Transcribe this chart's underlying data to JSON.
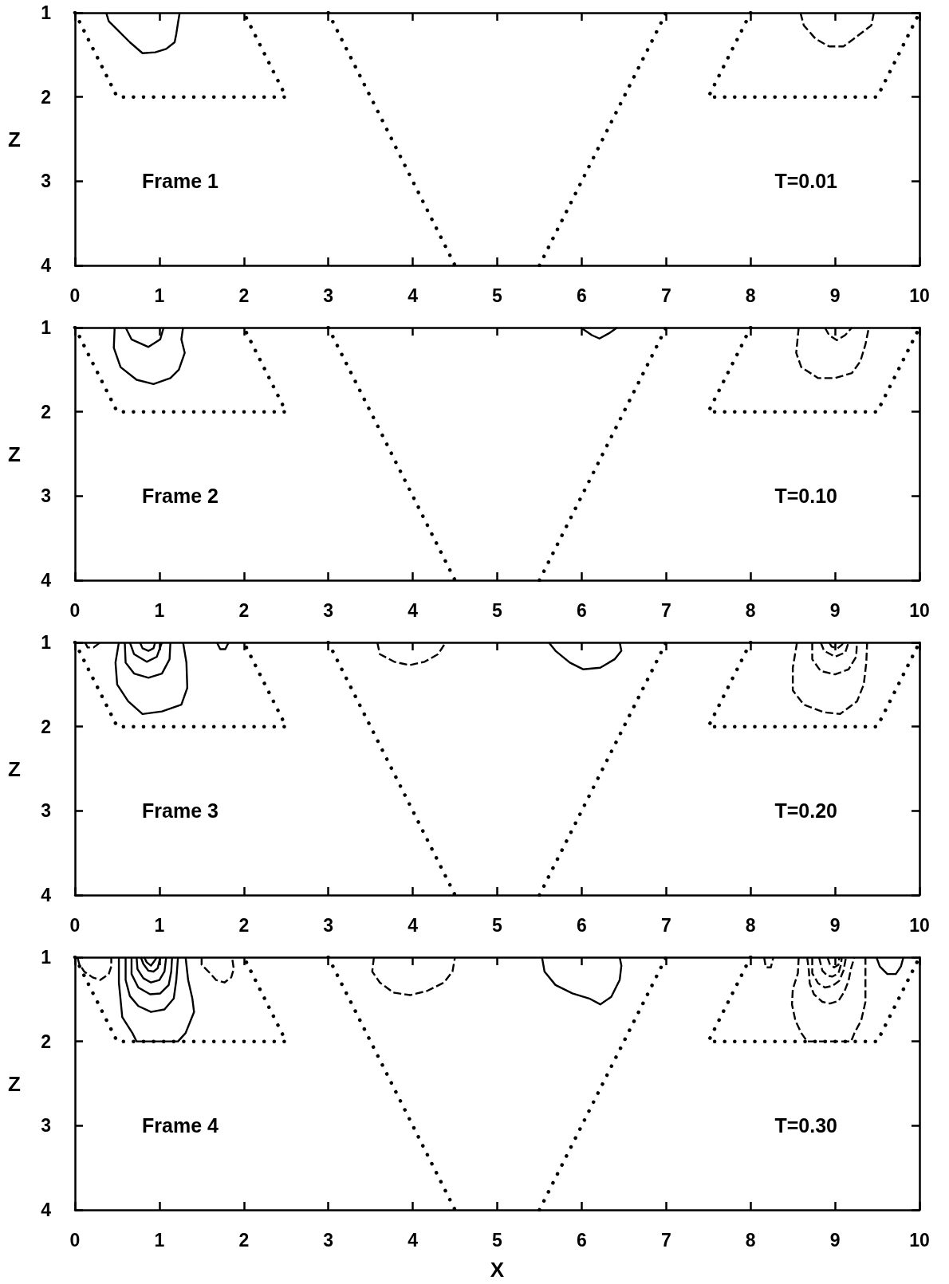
{
  "chart_data": [
    {
      "type": "line",
      "ylabel": "Z",
      "annotations": [
        "Frame 1",
        "T=0.01"
      ],
      "xlim": [
        0,
        10
      ],
      "xticks": [
        0,
        1,
        2,
        3,
        4,
        5,
        6,
        7,
        8,
        9,
        10
      ],
      "ylim": [
        4,
        1
      ],
      "yticks": [
        1,
        2,
        3,
        4
      ],
      "marker": "none",
      "series": [
        {
          "color": "#000000",
          "line_style": "dotted",
          "x": [
            0,
            0.5,
            2.5,
            2
          ],
          "values": [
            1,
            2,
            2,
            1
          ]
        },
        {
          "color": "#000000",
          "line_style": "dotted",
          "x": [
            3,
            4.5
          ],
          "values": [
            1,
            4
          ]
        },
        {
          "color": "#000000",
          "line_style": "dotted",
          "x": [
            5.5,
            7
          ],
          "values": [
            4,
            1
          ]
        },
        {
          "color": "#000000",
          "line_style": "dotted",
          "x": [
            8,
            7.5,
            9.5,
            10
          ],
          "values": [
            1,
            2,
            2,
            1
          ]
        },
        {
          "color": "#000000",
          "line_style": "solid",
          "x": [
            0.37,
            0.4,
            0.5,
            0.65,
            0.8,
            0.95,
            1.08,
            1.18,
            1.2,
            1.22,
            1.24
          ],
          "values": [
            1,
            1.1,
            1.2,
            1.35,
            1.48,
            1.47,
            1.43,
            1.35,
            1.25,
            1.12,
            1
          ]
        },
        {
          "color": "#000000",
          "line_style": "dashed",
          "x": [
            8.59,
            8.63,
            8.77,
            8.93,
            9.1,
            9.26,
            9.43,
            9.46
          ],
          "values": [
            1,
            1.15,
            1.31,
            1.4,
            1.4,
            1.28,
            1.15,
            1
          ]
        }
      ]
    },
    {
      "type": "line",
      "ylabel": "Z",
      "annotations": [
        "Frame 2",
        "T=0.10"
      ],
      "xlim": [
        0,
        10
      ],
      "xticks": [
        0,
        1,
        2,
        3,
        4,
        5,
        6,
        7,
        8,
        9,
        10
      ],
      "ylim": [
        4,
        1
      ],
      "yticks": [
        1,
        2,
        3,
        4
      ],
      "marker": "none",
      "series": [
        {
          "color": "#000000",
          "line_style": "dotted",
          "x": [
            0,
            0.5,
            2.5,
            2
          ],
          "values": [
            1,
            2,
            2,
            1
          ]
        },
        {
          "color": "#000000",
          "line_style": "dotted",
          "x": [
            3,
            4.5
          ],
          "values": [
            1,
            4
          ]
        },
        {
          "color": "#000000",
          "line_style": "dotted",
          "x": [
            5.5,
            7
          ],
          "values": [
            4,
            1
          ]
        },
        {
          "color": "#000000",
          "line_style": "dotted",
          "x": [
            8,
            7.5,
            9.5,
            10
          ],
          "values": [
            1,
            2,
            2,
            1
          ]
        },
        {
          "color": "#000000",
          "line_style": "solid",
          "x": [
            0.47,
            0.46,
            0.54,
            0.73,
            0.93,
            1.13,
            1.23,
            1.3,
            1.26,
            1.28
          ],
          "values": [
            1,
            1.24,
            1.47,
            1.62,
            1.67,
            1.6,
            1.5,
            1.3,
            1.14,
            1
          ]
        },
        {
          "color": "#000000",
          "line_style": "solid",
          "x": [
            0.6,
            0.67,
            0.87,
            1.01,
            1.05
          ],
          "values": [
            1,
            1.14,
            1.23,
            1.14,
            1
          ]
        },
        {
          "color": "#000000",
          "line_style": "solid",
          "x": [
            5.99,
            6.12,
            6.21,
            6.32,
            6.42
          ],
          "values": [
            1,
            1.09,
            1.13,
            1.07,
            1
          ]
        },
        {
          "color": "#000000",
          "line_style": "dashed",
          "x": [
            8.57,
            8.54,
            8.6,
            8.8,
            9,
            9.2,
            9.3,
            9.36,
            9.4
          ],
          "values": [
            1,
            1.3,
            1.47,
            1.6,
            1.6,
            1.54,
            1.4,
            1.2,
            1
          ]
        },
        {
          "color": "#000000",
          "line_style": "dashed",
          "x": [
            8.88,
            8.93,
            9.02,
            9.12,
            9.2
          ],
          "values": [
            1,
            1.09,
            1.15,
            1.09,
            1
          ]
        }
      ]
    },
    {
      "type": "line",
      "ylabel": "Z",
      "annotations": [
        "Frame 3",
        "T=0.20"
      ],
      "xlim": [
        0,
        10
      ],
      "xticks": [
        0,
        1,
        2,
        3,
        4,
        5,
        6,
        7,
        8,
        9,
        10
      ],
      "ylim": [
        4,
        1
      ],
      "yticks": [
        1,
        2,
        3,
        4
      ],
      "marker": "none",
      "series": [
        {
          "color": "#000000",
          "line_style": "dotted",
          "x": [
            0,
            0.5,
            2.5,
            2
          ],
          "values": [
            1,
            2,
            2,
            1
          ]
        },
        {
          "color": "#000000",
          "line_style": "dotted",
          "x": [
            3,
            4.5
          ],
          "values": [
            1,
            4
          ]
        },
        {
          "color": "#000000",
          "line_style": "dotted",
          "x": [
            5.5,
            7
          ],
          "values": [
            4,
            1
          ]
        },
        {
          "color": "#000000",
          "line_style": "dotted",
          "x": [
            8,
            7.5,
            9.5,
            10
          ],
          "values": [
            1,
            2,
            2,
            1
          ]
        },
        {
          "color": "#000000",
          "line_style": "solid",
          "x": [
            0.52,
            0.48,
            0.5,
            0.63,
            0.8,
            1.03,
            1.26,
            1.33,
            1.32,
            1.28
          ],
          "values": [
            1,
            1.24,
            1.5,
            1.7,
            1.85,
            1.82,
            1.74,
            1.54,
            1.24,
            1
          ]
        },
        {
          "color": "#000000",
          "line_style": "solid",
          "x": [
            0.59,
            0.6,
            0.7,
            0.87,
            1.03,
            1.12,
            1.13
          ],
          "values": [
            1,
            1.24,
            1.37,
            1.42,
            1.37,
            1.2,
            1
          ]
        },
        {
          "color": "#000000",
          "line_style": "solid",
          "x": [
            0.65,
            0.7,
            0.85,
            0.97,
            1.03
          ],
          "values": [
            1,
            1.14,
            1.23,
            1.17,
            1
          ]
        },
        {
          "color": "#000000",
          "line_style": "solid",
          "x": [
            0.77,
            0.8,
            0.87,
            0.93,
            0.95
          ],
          "values": [
            1,
            1.07,
            1.1,
            1.07,
            1
          ]
        },
        {
          "color": "#000000",
          "line_style": "dashed",
          "x": [
            0.12,
            0.15,
            0.22,
            0.3
          ],
          "values": [
            1,
            1.06,
            1.06,
            1
          ]
        },
        {
          "color": "#000000",
          "line_style": "solid",
          "x": [
            1.68,
            1.72,
            1.78,
            1.82
          ],
          "values": [
            1,
            1.08,
            1.08,
            1
          ]
        },
        {
          "color": "#000000",
          "line_style": "dashed",
          "x": [
            3.58,
            3.61,
            3.78,
            3.96,
            4.14,
            4.3,
            4.39
          ],
          "values": [
            1,
            1.14,
            1.23,
            1.27,
            1.23,
            1.14,
            1
          ]
        },
        {
          "color": "#000000",
          "line_style": "solid",
          "x": [
            5.61,
            5.69,
            5.86,
            6.02,
            6.22,
            6.39,
            6.47,
            6.45
          ],
          "values": [
            1,
            1.1,
            1.24,
            1.32,
            1.3,
            1.2,
            1.1,
            1
          ]
        },
        {
          "color": "#000000",
          "line_style": "dashed",
          "x": [
            8.55,
            8.5,
            8.5,
            8.63,
            8.87,
            9.06,
            9.26,
            9.34,
            9.37,
            9.38
          ],
          "values": [
            1,
            1.3,
            1.57,
            1.74,
            1.83,
            1.85,
            1.7,
            1.5,
            1.24,
            1
          ]
        },
        {
          "color": "#000000",
          "line_style": "dashed",
          "x": [
            8.73,
            8.73,
            8.83,
            9,
            9.16,
            9.25,
            9.26
          ],
          "values": [
            1,
            1.2,
            1.34,
            1.38,
            1.32,
            1.17,
            1
          ]
        },
        {
          "color": "#000000",
          "line_style": "dashed",
          "x": [
            8.83,
            8.87,
            9,
            9.12,
            9.16
          ],
          "values": [
            1,
            1.1,
            1.17,
            1.12,
            1
          ]
        },
        {
          "color": "#000000",
          "line_style": "dashed",
          "x": [
            8.93,
            8.96,
            9.03,
            9.08,
            9.1
          ],
          "values": [
            1,
            1.05,
            1.07,
            1.03,
            1
          ]
        }
      ]
    },
    {
      "type": "line",
      "xlabel": "X",
      "ylabel": "Z",
      "annotations": [
        "Frame 4",
        "T=0.30"
      ],
      "xlim": [
        0,
        10
      ],
      "xticks": [
        0,
        1,
        2,
        3,
        4,
        5,
        6,
        7,
        8,
        9,
        10
      ],
      "ylim": [
        4,
        1
      ],
      "yticks": [
        1,
        2,
        3,
        4
      ],
      "marker": "none",
      "series": [
        {
          "color": "#000000",
          "line_style": "dotted",
          "x": [
            0,
            0.5,
            2.5,
            2
          ],
          "values": [
            1,
            2,
            2,
            1
          ]
        },
        {
          "color": "#000000",
          "line_style": "dotted",
          "x": [
            3,
            4.5
          ],
          "values": [
            1,
            4
          ]
        },
        {
          "color": "#000000",
          "line_style": "dotted",
          "x": [
            5.5,
            7
          ],
          "values": [
            4,
            1
          ]
        },
        {
          "color": "#000000",
          "line_style": "dotted",
          "x": [
            8,
            7.5,
            9.5,
            10
          ],
          "values": [
            1,
            2,
            2,
            1
          ]
        },
        {
          "color": "#000000",
          "line_style": "solid",
          "x": [
            0.52,
            0.52,
            0.56,
            0.68,
            0.73,
            1.22,
            1.31,
            1.41,
            1.39,
            1.34,
            1.31
          ],
          "values": [
            1,
            1.3,
            1.71,
            1.9,
            2,
            2,
            1.9,
            1.65,
            1.49,
            1.27,
            1
          ]
        },
        {
          "color": "#000000",
          "line_style": "solid",
          "x": [
            0.6,
            0.6,
            0.65,
            0.75,
            0.9,
            1.06,
            1.17,
            1.2,
            1.22
          ],
          "values": [
            1,
            1.27,
            1.46,
            1.58,
            1.65,
            1.62,
            1.49,
            1.27,
            1
          ]
        },
        {
          "color": "#000000",
          "line_style": "solid",
          "x": [
            0.67,
            0.67,
            0.75,
            0.89,
            1.01,
            1.11,
            1.14,
            1.15
          ],
          "values": [
            1,
            1.2,
            1.36,
            1.44,
            1.43,
            1.33,
            1.17,
            1
          ]
        },
        {
          "color": "#000000",
          "line_style": "solid",
          "x": [
            0.73,
            0.74,
            0.81,
            0.9,
            1,
            1.06,
            1.08
          ],
          "values": [
            1,
            1.14,
            1.25,
            1.3,
            1.27,
            1.17,
            1
          ]
        },
        {
          "color": "#000000",
          "line_style": "solid",
          "x": [
            0.78,
            0.81,
            0.87,
            0.93,
            0.98,
            1.01
          ],
          "values": [
            1,
            1.08,
            1.16,
            1.17,
            1.13,
            1
          ]
        },
        {
          "color": "#000000",
          "line_style": "solid",
          "x": [
            0.82,
            0.85,
            0.9,
            0.93,
            0.97
          ],
          "values": [
            1,
            1.06,
            1.1,
            1.06,
            1
          ]
        },
        {
          "color": "#000000",
          "line_style": "dashed",
          "x": [
            0.03,
            0.05,
            0.11,
            0.21,
            0.3,
            0.4,
            0.43,
            0.43
          ],
          "values": [
            1,
            1.08,
            1.17,
            1.24,
            1.27,
            1.2,
            1.11,
            1
          ]
        },
        {
          "color": "#000000",
          "line_style": "dashed",
          "x": [
            1.5,
            1.5,
            1.6,
            1.67,
            1.77,
            1.85,
            1.88,
            1.86
          ],
          "values": [
            1,
            1.09,
            1.19,
            1.27,
            1.3,
            1.24,
            1.14,
            1
          ]
        },
        {
          "color": "#000000",
          "line_style": "dashed",
          "x": [
            3.54,
            3.52,
            3.61,
            3.77,
            3.97,
            4.17,
            4.37,
            4.47,
            4.5
          ],
          "values": [
            1,
            1.17,
            1.3,
            1.42,
            1.45,
            1.4,
            1.3,
            1.17,
            1
          ]
        },
        {
          "color": "#000000",
          "line_style": "solid",
          "x": [
            5.53,
            5.56,
            5.69,
            5.89,
            6.09,
            6.22,
            6.35,
            6.45,
            6.47,
            6.45
          ],
          "values": [
            1,
            1.17,
            1.33,
            1.43,
            1.49,
            1.56,
            1.47,
            1.27,
            1.1,
            1
          ]
        },
        {
          "color": "#000000",
          "line_style": "dashed",
          "x": [
            8.57,
            8.56,
            8.5,
            8.49,
            8.53,
            8.6,
            8.67,
            9.19,
            9.23,
            9.31,
            9.36,
            9.36,
            9.36
          ],
          "values": [
            1,
            1.19,
            1.38,
            1.56,
            1.75,
            1.9,
            2,
            2,
            1.9,
            1.75,
            1.53,
            1.31,
            1
          ]
        },
        {
          "color": "#000000",
          "line_style": "dashed",
          "x": [
            8.67,
            8.69,
            8.7,
            8.75,
            8.85,
            8.94,
            9.04,
            9.11,
            9.16,
            9.19,
            9.23
          ],
          "values": [
            1,
            1.16,
            1.31,
            1.44,
            1.53,
            1.55,
            1.52,
            1.41,
            1.28,
            1.13,
            1
          ]
        },
        {
          "color": "#000000",
          "line_style": "dashed",
          "x": [
            8.73,
            8.73,
            8.8,
            8.88,
            8.97,
            9.05,
            9.1,
            9.13
          ],
          "values": [
            1,
            1.19,
            1.31,
            1.36,
            1.34,
            1.28,
            1.16,
            1
          ]
        },
        {
          "color": "#000000",
          "line_style": "dashed",
          "x": [
            8.81,
            8.85,
            8.91,
            8.97,
            9.04,
            9.07,
            9.08
          ],
          "values": [
            1,
            1.16,
            1.22,
            1.23,
            1.19,
            1.09,
            1
          ]
        },
        {
          "color": "#000000",
          "line_style": "dashed",
          "x": [
            8.91,
            8.94,
            8.99,
            9.04,
            9.05
          ],
          "values": [
            1,
            1.09,
            1.12,
            1.09,
            1
          ]
        },
        {
          "color": "#000000",
          "line_style": "dashed",
          "x": [
            8.16,
            8.18,
            8.24,
            8.27
          ],
          "values": [
            1,
            1.12,
            1.12,
            1
          ]
        },
        {
          "color": "#000000",
          "line_style": "solid",
          "x": [
            9.49,
            9.53,
            9.62,
            9.72,
            9.78,
            9.81
          ],
          "values": [
            1,
            1.11,
            1.2,
            1.2,
            1.11,
            1
          ]
        }
      ]
    }
  ]
}
